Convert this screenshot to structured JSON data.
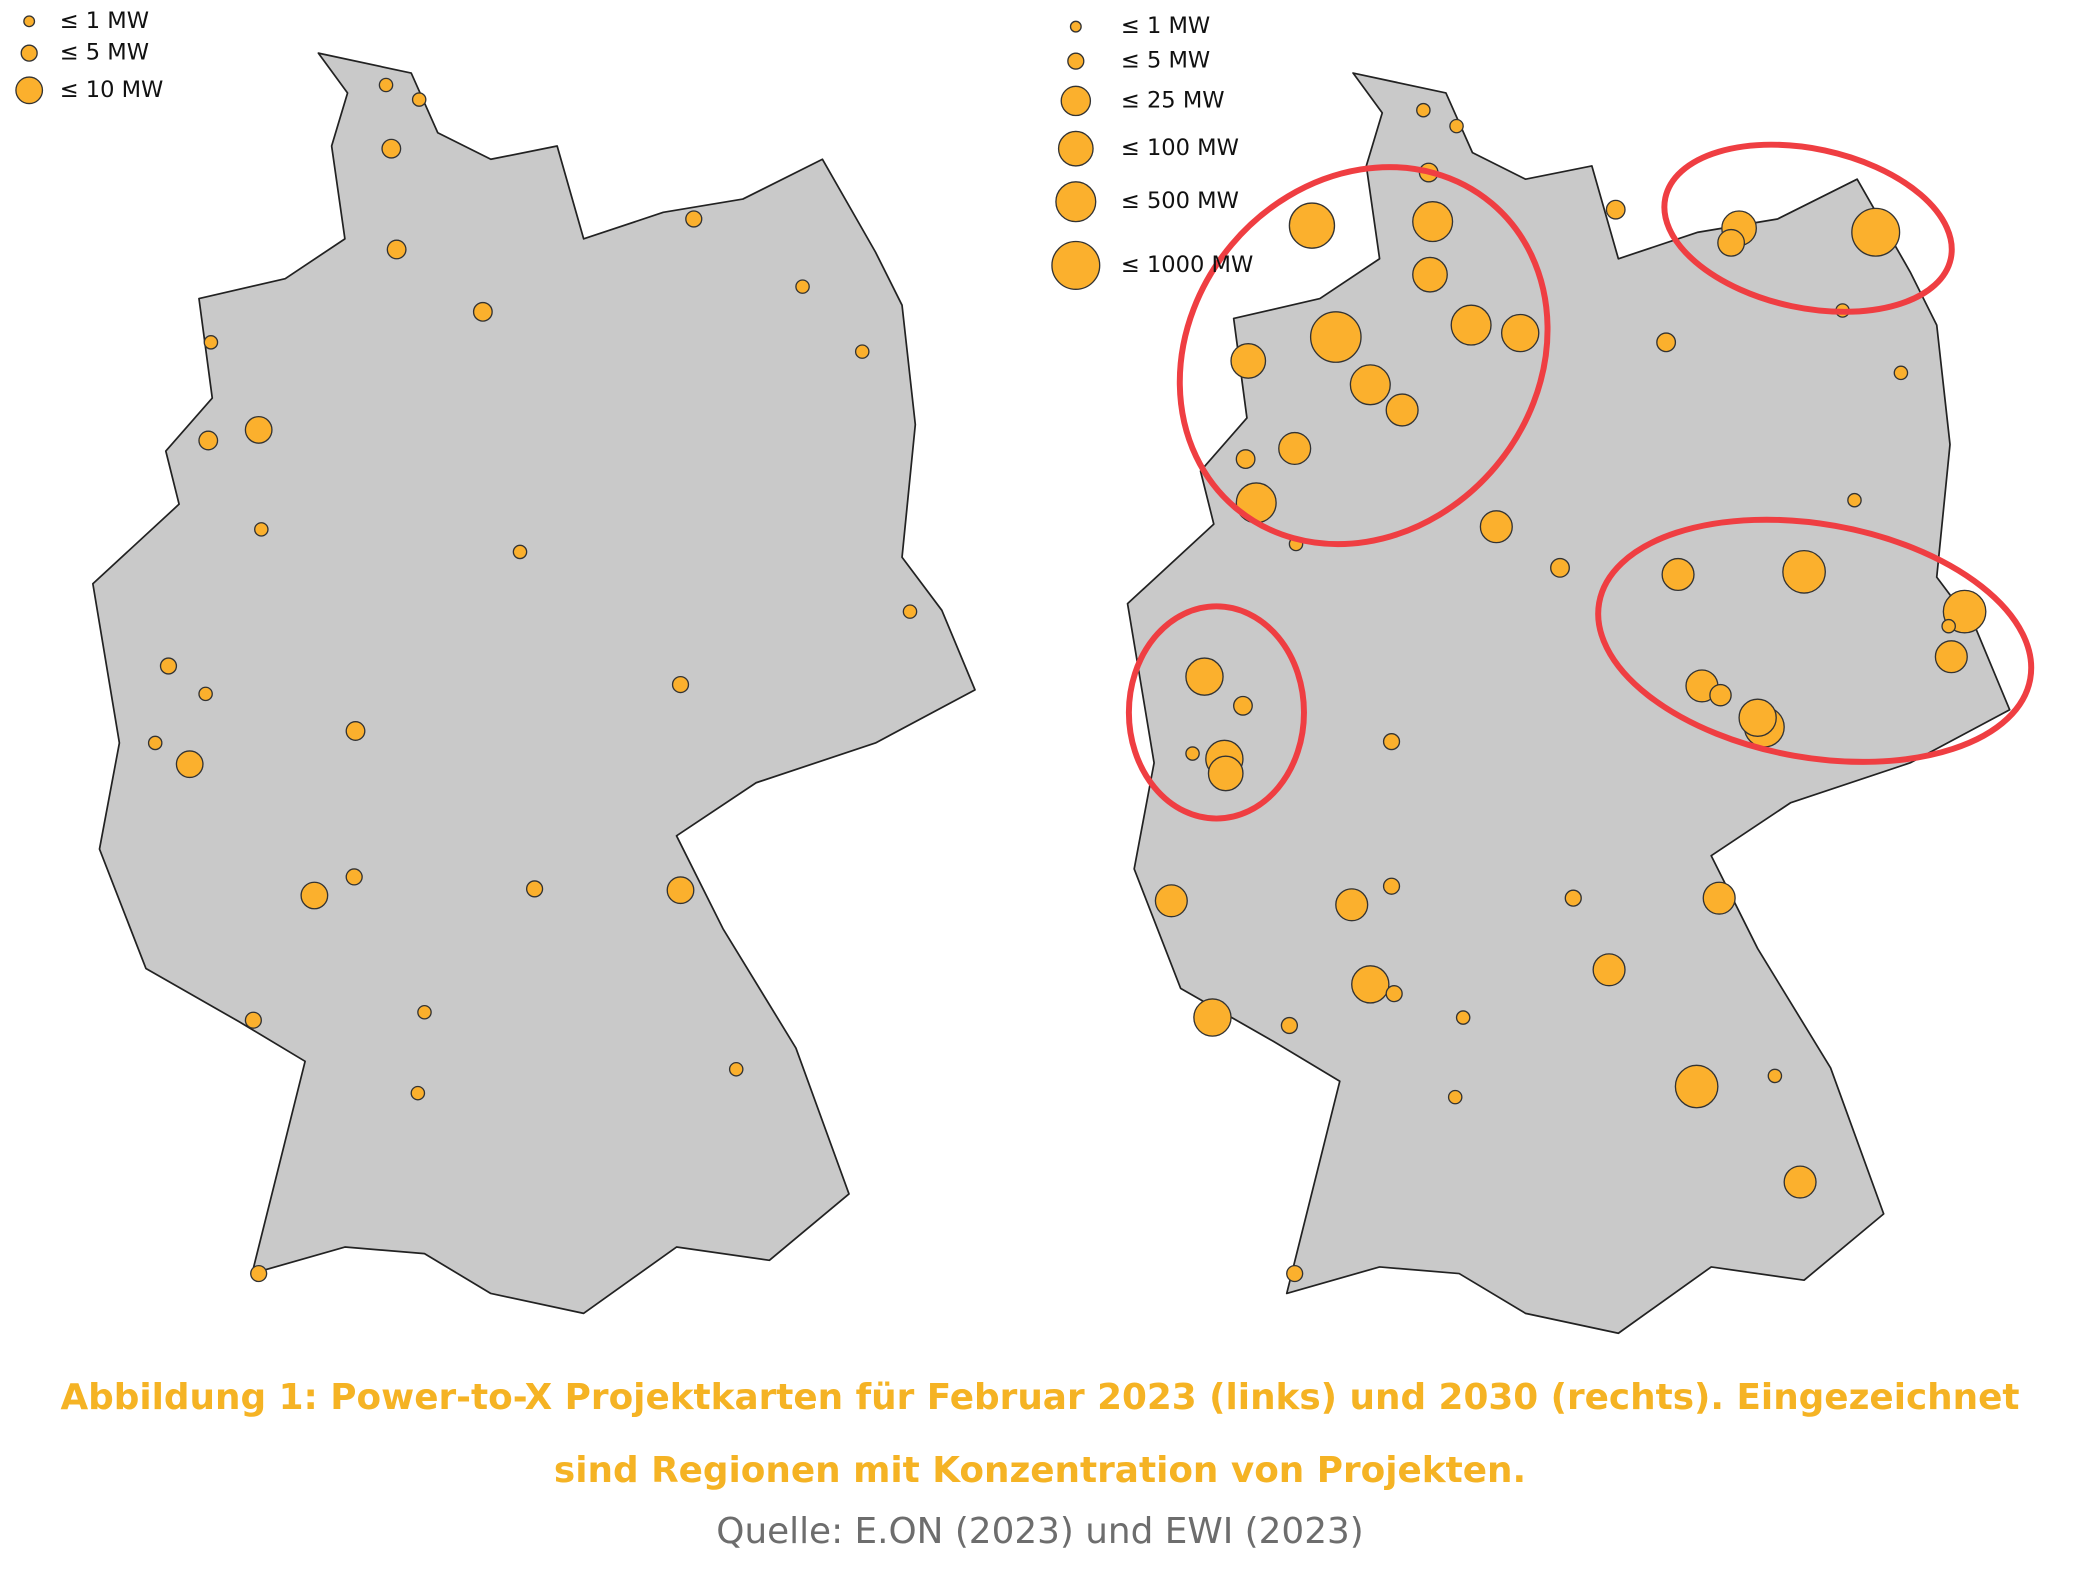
{
  "left_legend": [
    "≤ 1 MW",
    "≤ 5 MW",
    "≤ 10 MW"
  ],
  "right_legend": [
    "≤ 1 MW",
    "≤ 5 MW",
    "≤ 25 MW",
    "≤ 100 MW",
    "≤ 500 MW",
    "≤ 1000 MW"
  ],
  "caption": {
    "line1": "Abbildung 1: Power-to-X Projektkarten für Februar 2023 (links) und 2030 (rechts). Eingezeichnet",
    "line2": "sind Regionen mit Konzentration von Projekten.",
    "source": "Quelle: E.ON (2023) und EWI (2023)"
  }
}
